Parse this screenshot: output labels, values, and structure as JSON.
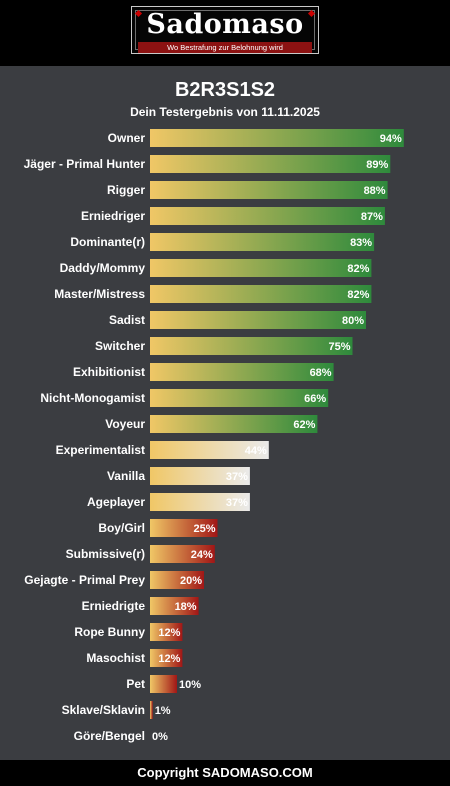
{
  "header": {
    "logo_title": "Sadomaso",
    "logo_tagline": "Wo Bestrafung zur Belohnung wird"
  },
  "title": "B2R3S1S2",
  "subtitle": "Dein Testergebnis von 11.11.2025",
  "footer": "Copyright SADOMASO.COM",
  "chart_data": {
    "type": "bar",
    "orientation": "horizontal",
    "xlim": [
      0,
      100
    ],
    "categories": [
      "Owner",
      "Jäger - Primal Hunter",
      "Rigger",
      "Erniedriger",
      "Dominante(r)",
      "Daddy/Mommy",
      "Master/Mistress",
      "Sadist",
      "Switcher",
      "Exhibitionist",
      "Nicht-Monogamist",
      "Voyeur",
      "Experimentalist",
      "Vanilla",
      "Ageplayer",
      "Boy/Girl",
      "Submissive(r)",
      "Gejagte - Primal Prey",
      "Erniedrigte",
      "Rope Bunny",
      "Masochist",
      "Pet",
      "Sklave/Sklavin",
      "Göre/Bengel"
    ],
    "values": [
      94,
      89,
      88,
      87,
      83,
      82,
      82,
      80,
      75,
      68,
      66,
      62,
      44,
      37,
      37,
      25,
      24,
      20,
      18,
      12,
      12,
      10,
      1,
      0
    ],
    "value_labels": [
      "94%",
      "89%",
      "88%",
      "87%",
      "83%",
      "82%",
      "82%",
      "80%",
      "75%",
      "68%",
      "66%",
      "62%",
      "44%",
      "37%",
      "37%",
      "25%",
      "24%",
      "20%",
      "18%",
      "12%",
      "12%",
      "10%",
      "1%",
      "0%"
    ],
    "colors": {
      "start": "#f0c766",
      "high_end": "#2e8a3c",
      "mid_end": "#eaeaea",
      "low_end": "#a11616"
    }
  }
}
